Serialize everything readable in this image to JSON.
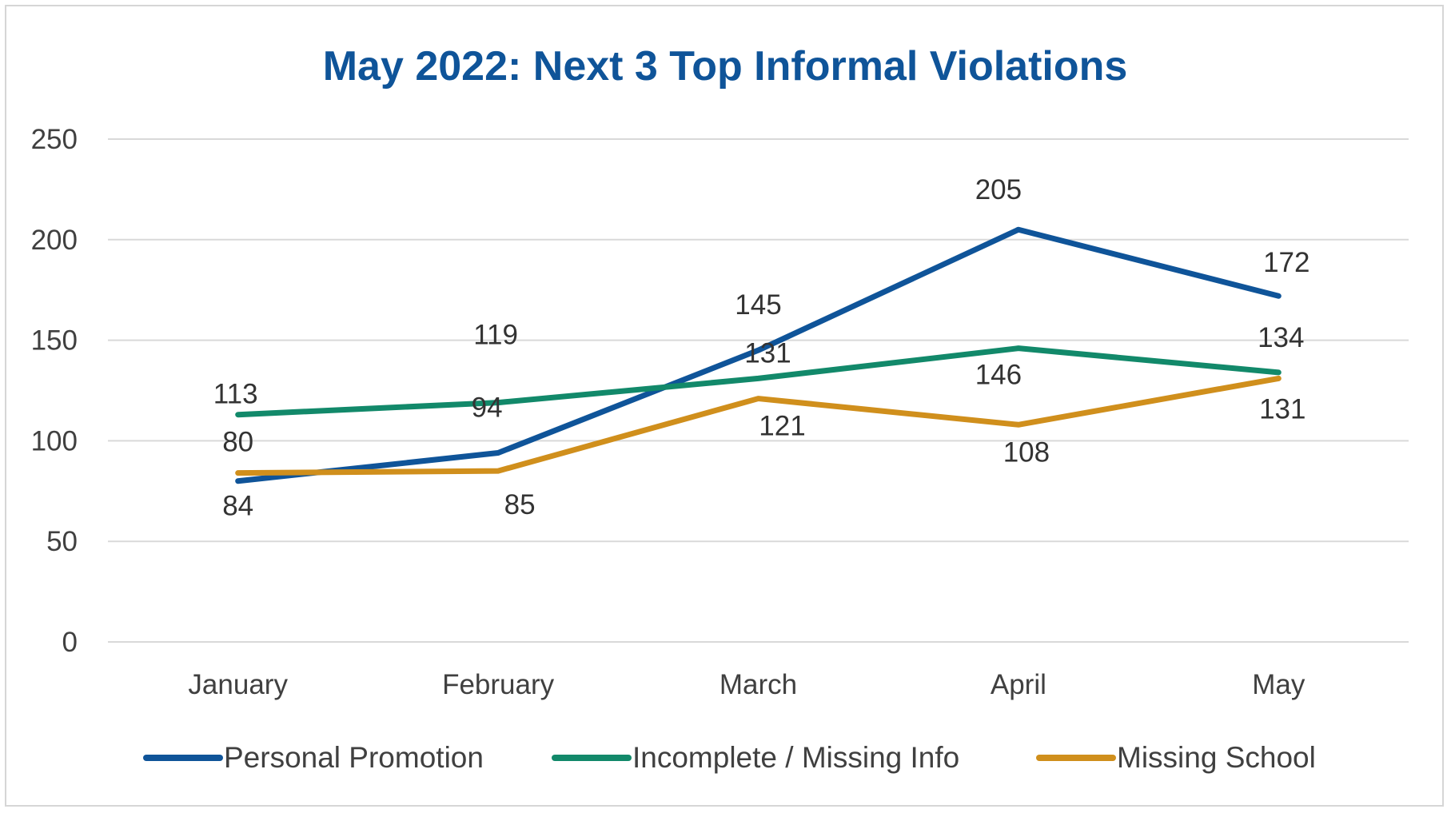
{
  "chart_data": {
    "type": "line",
    "title": "May 2022: Next 3 Top Informal Violations",
    "categories": [
      "January",
      "February",
      "March",
      "April",
      "May"
    ],
    "ylim": [
      0,
      250
    ],
    "yticks": [
      0,
      50,
      100,
      150,
      200,
      250
    ],
    "grid": true,
    "legend_position": "bottom",
    "series": [
      {
        "name": "Personal Promotion",
        "color": "#0f5499",
        "values": [
          80,
          94,
          145,
          205,
          172
        ]
      },
      {
        "name": "Incomplete / Missing Info",
        "color": "#12896a",
        "values": [
          113,
          119,
          131,
          146,
          134
        ]
      },
      {
        "name": "Missing School",
        "color": "#d08f1c",
        "values": [
          84,
          85,
          121,
          108,
          131
        ]
      }
    ]
  }
}
